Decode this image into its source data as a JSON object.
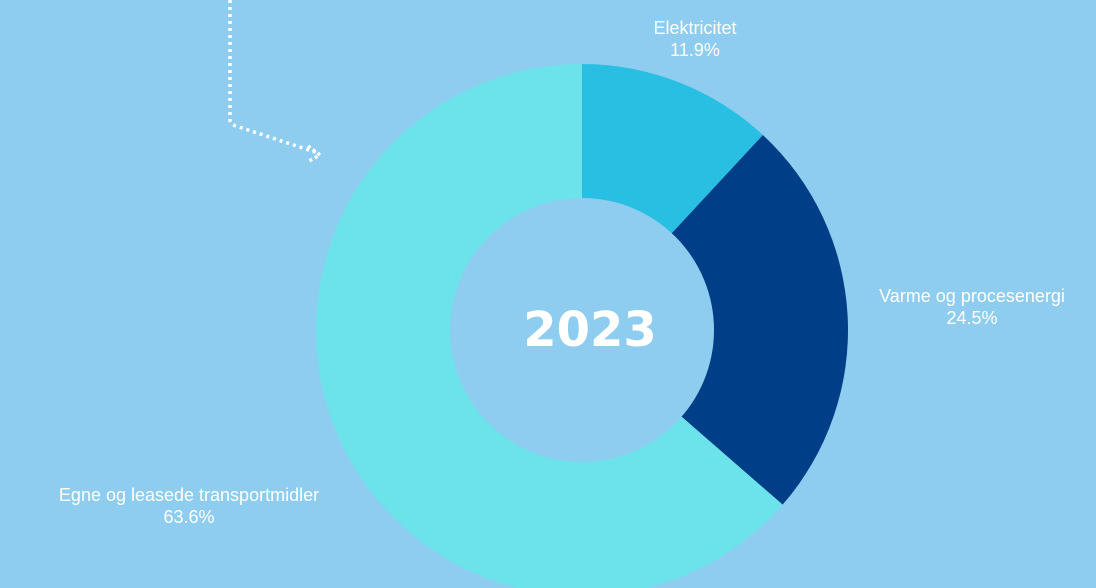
{
  "chart_data": {
    "type": "pie",
    "title": "",
    "center_label": "2023",
    "slices": [
      {
        "name": "Elektricitet",
        "value": 11.9,
        "label": "11.9%",
        "color": "#29bfe3"
      },
      {
        "name": "Varme og procesenergi",
        "value": 24.5,
        "label": "24.5%",
        "color": "#003f87"
      },
      {
        "name": "Egne og leasede transportmidler",
        "value": 63.6,
        "label": "63.6%",
        "color": "#6ce3ea"
      }
    ],
    "hole_color": "#8ecdf0",
    "legend": "none"
  },
  "colors": {
    "background": "#8ecdf0",
    "arrow": "#ffffff",
    "text": "#ffffff"
  }
}
